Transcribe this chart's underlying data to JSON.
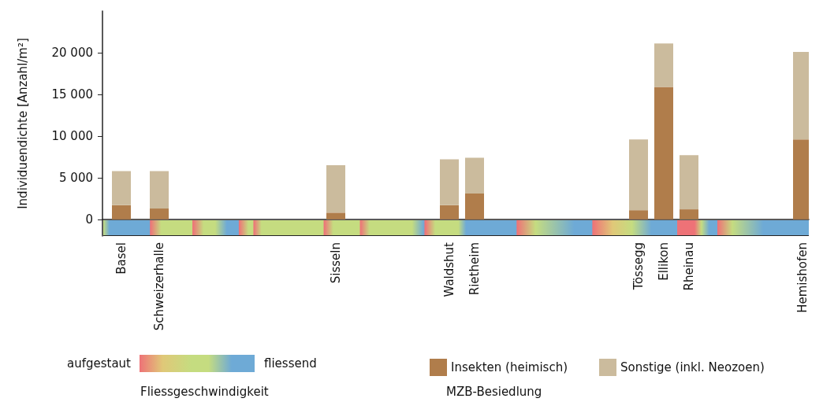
{
  "chart_data": {
    "type": "bar",
    "stacked": true,
    "ylabel": "Individuendichte [Anzahl/m²]",
    "categories": [
      null,
      "Basel",
      null,
      null,
      "Schweizerhalle",
      null,
      null,
      null,
      null,
      null,
      null,
      null,
      null,
      null,
      null,
      null,
      null,
      null,
      "Sisseln",
      null,
      null,
      null,
      null,
      null,
      null,
      null,
      null,
      "Waldshut",
      null,
      "Rietheim",
      null,
      null,
      null,
      null,
      null,
      null,
      null,
      null,
      null,
      null,
      null,
      null,
      "Tössegg",
      null,
      "Ellikon",
      null,
      "Rheinau",
      null,
      null,
      null,
      null,
      null,
      null,
      null,
      null,
      "Hemishofen"
    ],
    "series": [
      {
        "name": "Insekten (heimisch)",
        "color": "#b07d4b",
        "values": [
          null,
          1700,
          null,
          null,
          1300,
          null,
          null,
          null,
          null,
          null,
          null,
          null,
          null,
          null,
          null,
          null,
          null,
          null,
          800,
          null,
          null,
          null,
          null,
          null,
          null,
          null,
          null,
          1700,
          null,
          3100,
          null,
          null,
          null,
          null,
          null,
          null,
          null,
          null,
          null,
          null,
          null,
          null,
          1100,
          null,
          15900,
          null,
          1200,
          null,
          null,
          null,
          null,
          null,
          null,
          null,
          null,
          9600
        ]
      },
      {
        "name": "Sonstige (inkl. Neozoen)",
        "color": "#cbbb9d",
        "values": [
          null,
          4100,
          null,
          null,
          4500,
          null,
          null,
          null,
          null,
          null,
          null,
          null,
          null,
          null,
          null,
          null,
          null,
          null,
          5700,
          null,
          null,
          null,
          null,
          null,
          null,
          null,
          null,
          5500,
          null,
          4300,
          null,
          null,
          null,
          null,
          null,
          null,
          null,
          null,
          null,
          null,
          null,
          null,
          8500,
          null,
          5200,
          null,
          6500,
          null,
          null,
          null,
          null,
          null,
          null,
          null,
          null,
          10500
        ]
      }
    ],
    "ylim": [
      -2000,
      25000
    ],
    "yticks": [
      0,
      {
        "value": 5000,
        "label": "5 000"
      },
      {
        "value": 10000,
        "label": "10 000"
      },
      {
        "value": 15000,
        "label": "15 000"
      },
      {
        "value": 20000,
        "label": "20 000"
      }
    ],
    "legend": "bottom",
    "annotations": [
      "aufgestaut",
      "fliessend",
      "Fliessgeschwindigkeit",
      "MZB-Besiedlung"
    ]
  }
}
